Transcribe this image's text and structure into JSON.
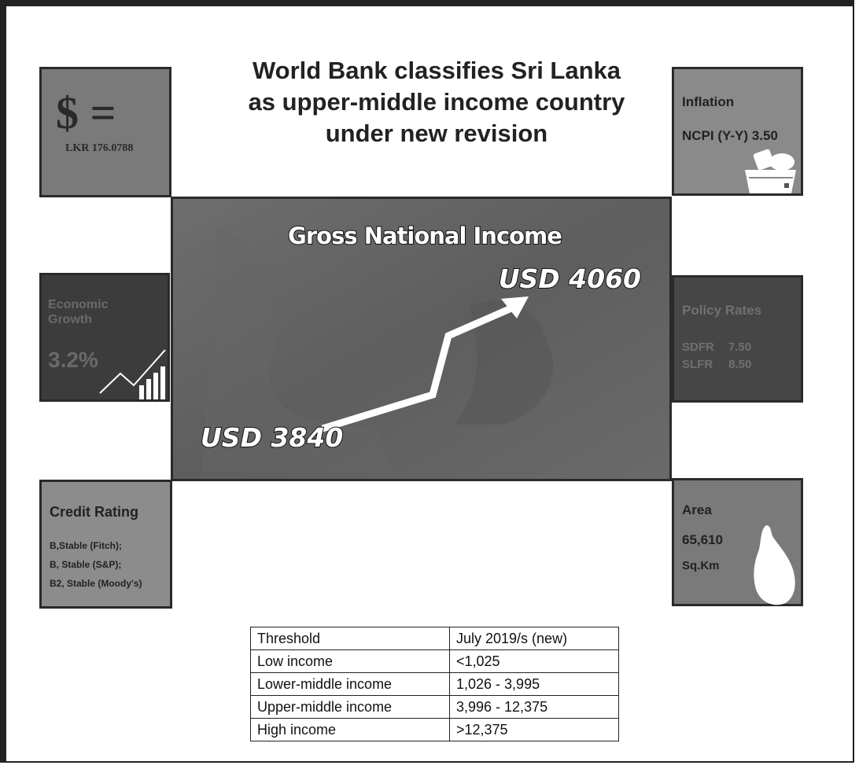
{
  "title_lines": [
    "World Bank classifies Sri Lanka",
    "as upper-middle income country",
    "under new revision"
  ],
  "exchange_rate": {
    "symbol": "$ =",
    "value": "LKR 176.0788"
  },
  "inflation": {
    "label": "Inflation",
    "value": "NCPI (Y-Y) 3.50"
  },
  "economic_growth": {
    "label_lines": [
      "Economic",
      "Growth"
    ],
    "value": "3.2%"
  },
  "policy_rates": {
    "label": "Policy Rates",
    "rates": [
      {
        "name": "SDFR",
        "value": "7.50"
      },
      {
        "name": "SLFR",
        "value": "8.50"
      }
    ]
  },
  "credit_rating": {
    "label": "Credit Rating",
    "ratings": [
      "B,Stable (Fitch);",
      "B, Stable (S&P);",
      "B2, Stable (Moody's)"
    ]
  },
  "area": {
    "label": "Area",
    "value": "65,610",
    "unit": "Sq.Km"
  },
  "gni": {
    "label": "Gross National Income",
    "from": "USD 3840",
    "to": "USD 4060"
  },
  "table": {
    "header": [
      "Threshold",
      "July 2019/s (new)"
    ],
    "rows": [
      [
        "Low income",
        "<1,025"
      ],
      [
        "Lower-middle income",
        "1,026 - 3,995"
      ],
      [
        "Upper-middle income",
        "3,996 - 12,375"
      ],
      [
        "High income",
        ">12,375"
      ]
    ]
  }
}
